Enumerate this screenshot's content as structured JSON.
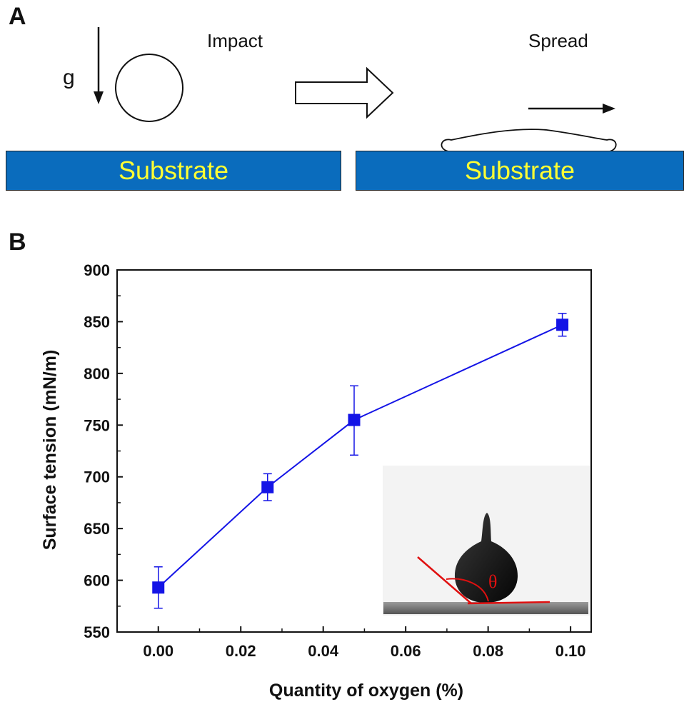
{
  "panel_a": {
    "letter": "A",
    "gravity_label": "g",
    "impact_label": "Impact",
    "spread_label": "Spread",
    "substrate_left": "Substrate",
    "substrate_right": "Substrate"
  },
  "panel_b": {
    "letter": "B",
    "inset_angle_label": "θ"
  },
  "colors": {
    "series": "#1414e6",
    "substrate": "#0a6cbd",
    "substrate_text": "#ffff33",
    "inset_line": "#e01010"
  },
  "chart_data": {
    "type": "line",
    "xlabel": "Quantity of oxygen (%)",
    "ylabel": "Surface tension (mN/m)",
    "xlim": [
      -0.01,
      0.105
    ],
    "ylim": [
      550,
      900
    ],
    "xticks": [
      "0.00",
      "0.02",
      "0.04",
      "0.06",
      "0.08",
      "0.10"
    ],
    "yticks": [
      "550",
      "600",
      "650",
      "700",
      "750",
      "800",
      "850",
      "900"
    ],
    "grid": false,
    "series": [
      {
        "marker": "square",
        "x": [
          0.0,
          0.0265,
          0.0475,
          0.098
        ],
        "y": [
          593,
          690,
          755,
          847
        ],
        "error_low": [
          573,
          677,
          721,
          836
        ],
        "error_high": [
          613,
          703,
          788,
          858
        ]
      }
    ]
  }
}
